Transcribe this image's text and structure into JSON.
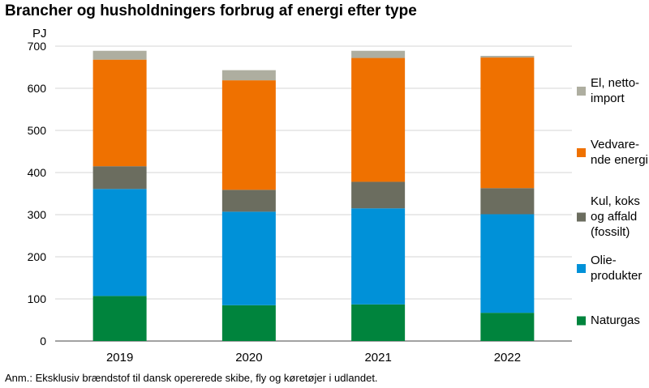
{
  "title": "Brancher og husholdningers forbrug af energi efter type",
  "note": "Anm.: Eksklusiv brændstof til dansk opererede skibe, fly og køretøjer i udlandet.",
  "chart_data": {
    "type": "bar",
    "stacked": true,
    "title": "Brancher og husholdningers forbrug af energi efter type",
    "ylabel": "PJ",
    "xlabel": "",
    "ylim": [
      0,
      700
    ],
    "yticks": [
      0,
      100,
      200,
      300,
      400,
      500,
      600,
      700
    ],
    "grid": true,
    "legend_position": "right",
    "categories": [
      "2019",
      "2020",
      "2021",
      "2022"
    ],
    "series": [
      {
        "name": "Naturgas",
        "color": "#00843d",
        "values": [
          107,
          85,
          87,
          67
        ]
      },
      {
        "name": "Olie-produkter",
        "color": "#0091d8",
        "values": [
          254,
          222,
          228,
          234
        ]
      },
      {
        "name": "Kul, koks og affald (fossilt)",
        "color": "#6b6d5f",
        "values": [
          54,
          52,
          63,
          62
        ]
      },
      {
        "name": "Vedvarende energi",
        "color": "#ef7100",
        "values": [
          253,
          260,
          294,
          310
        ]
      },
      {
        "name": "El, nettoimport",
        "color": "#aeaea0",
        "values": [
          21,
          24,
          17,
          4
        ]
      }
    ],
    "legend_lines": [
      [
        "Naturgas"
      ],
      [
        "Olie-",
        "produkter"
      ],
      [
        "Kul, koks",
        "og affald",
        "(fossilt)"
      ],
      [
        "Vedvare-",
        "nde energi"
      ],
      [
        "El, netto-",
        "import"
      ]
    ]
  }
}
